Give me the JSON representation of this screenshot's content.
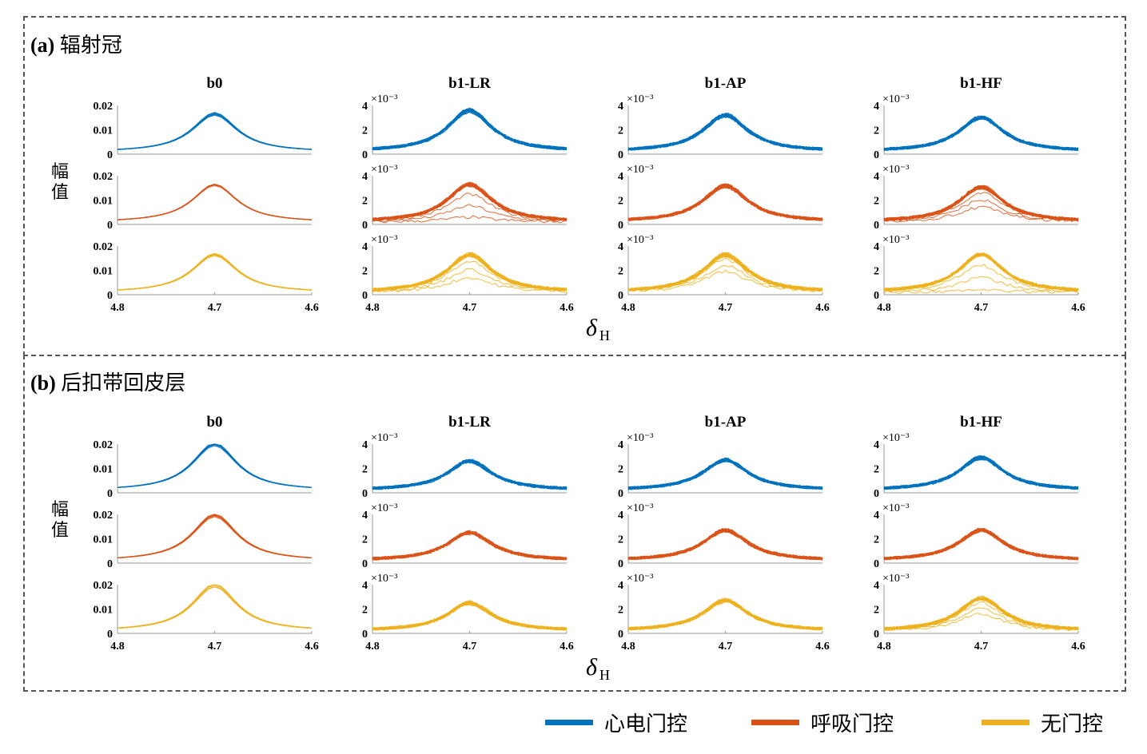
{
  "sections": [
    {
      "id": "a",
      "label_bold": "(a)",
      "label_text": "辐射冠"
    },
    {
      "id": "b",
      "label_bold": "(b)",
      "label_text": "后扣带回皮层"
    }
  ],
  "xlabel": {
    "main": "δ",
    "sub": "H"
  },
  "ylabel": "幅值",
  "legend": [
    {
      "label": "心电门控",
      "color": "#0072BD"
    },
    {
      "label": "呼吸门控",
      "color": "#D95319"
    },
    {
      "label": "无门控",
      "color": "#EDB120"
    }
  ],
  "chart_data": {
    "type": "line",
    "title": "",
    "columns": [
      "b0",
      "b1-LR",
      "b1-AP",
      "b1-HF"
    ],
    "rows": [
      "心电门控",
      "呼吸门控",
      "无门控"
    ],
    "xlim": [
      4.8,
      4.6
    ],
    "xticks": [
      "4.8",
      "4.7",
      "4.6"
    ],
    "x_reversed": true,
    "ylim_b0": [
      0,
      0.02
    ],
    "yticks_b0": [
      "0",
      "0.01",
      "0.02"
    ],
    "ylim_b1": [
      0,
      0.004
    ],
    "yticks_b1": [
      "0",
      "2",
      "4"
    ],
    "yexponent_b1": "×10⁻³",
    "peak_center": 4.7,
    "panels": {
      "a": {
        "b0": {
          "peaks": [
            0.0172,
            0.0168,
            0.0172
          ],
          "baseline": [
            0.0008,
            0.0008,
            0.0008
          ],
          "spread_low": [
            0.0003,
            0.0015,
            0.0005
          ]
        },
        "b1-LR": {
          "peaks": [
            0.0037,
            0.0034,
            0.0034
          ],
          "baseline": [
            0.0002,
            0.0002,
            0.0002
          ],
          "spread_low": [
            0.0003,
            0.0028,
            0.002
          ]
        },
        "b1-AP": {
          "peaks": [
            0.0033,
            0.0033,
            0.0034
          ],
          "baseline": [
            0.0002,
            0.0002,
            0.0002
          ],
          "spread_low": [
            0.0002,
            0.001,
            0.0015
          ]
        },
        "b1-HF": {
          "peaks": [
            0.0031,
            0.0032,
            0.0034
          ],
          "baseline": [
            0.0002,
            0.0002,
            0.0002
          ],
          "spread_low": [
            0.0003,
            0.0018,
            0.003
          ]
        }
      },
      "b": {
        "b0": {
          "peaks": [
            0.0208,
            0.0203,
            0.0205
          ],
          "baseline": [
            0.0008,
            0.0008,
            0.0008
          ],
          "spread_low": [
            0.001,
            0.0005,
            0.0005
          ]
        },
        "b1-LR": {
          "peaks": [
            0.0027,
            0.0026,
            0.0026
          ],
          "baseline": [
            0.0002,
            0.0002,
            0.0002
          ],
          "spread_low": [
            0.0003,
            0.0004,
            0.0004
          ]
        },
        "b1-AP": {
          "peaks": [
            0.0028,
            0.0028,
            0.0028
          ],
          "baseline": [
            0.0002,
            0.0002,
            0.0002
          ],
          "spread_low": [
            0.0003,
            0.0006,
            0.0006
          ]
        },
        "b1-HF": {
          "peaks": [
            0.003,
            0.0028,
            0.003
          ],
          "baseline": [
            0.0002,
            0.0002,
            0.0002
          ],
          "spread_low": [
            0.0002,
            0.0004,
            0.0014
          ]
        }
      }
    }
  }
}
